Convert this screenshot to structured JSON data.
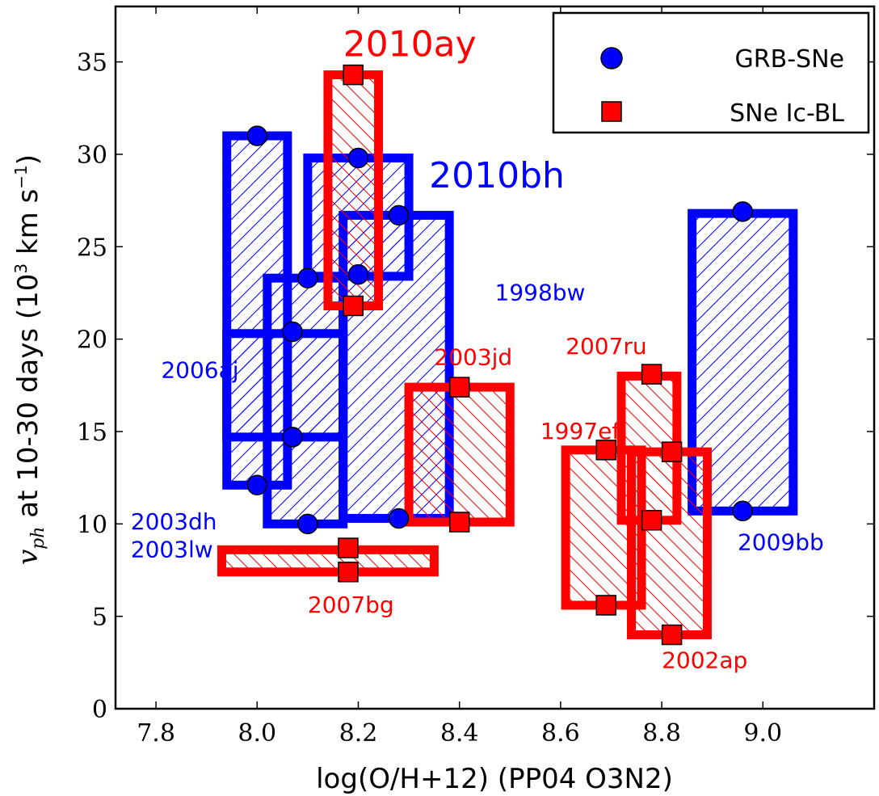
{
  "chart_data": {
    "type": "scatter",
    "xlabel": "log(O/H+12) (PP04 O3N2)",
    "ylabel": {
      "main": "v",
      "sub": "ph",
      "rest": " at 10-30 days (10",
      "sup": "3",
      "unit": " km s",
      "unit_sup": "−1",
      "close": ")"
    },
    "xlim": [
      7.72,
      9.22
    ],
    "ylim": [
      0,
      38
    ],
    "xticks": [
      {
        "value": 7.8,
        "label": "7.8"
      },
      {
        "value": 8.0,
        "label": "8.0"
      },
      {
        "value": 8.2,
        "label": "8.2"
      },
      {
        "value": 8.4,
        "label": "8.4"
      },
      {
        "value": 8.6,
        "label": "8.6"
      },
      {
        "value": 8.8,
        "label": "8.8"
      },
      {
        "value": 9.0,
        "label": "9.0"
      }
    ],
    "yticks": [
      {
        "value": 0,
        "label": "0"
      },
      {
        "value": 5,
        "label": "5"
      },
      {
        "value": 10,
        "label": "10"
      },
      {
        "value": 15,
        "label": "15"
      },
      {
        "value": 20,
        "label": "20"
      },
      {
        "value": 25,
        "label": "25"
      },
      {
        "value": 30,
        "label": "30"
      },
      {
        "value": 35,
        "label": "35"
      }
    ],
    "colors": {
      "grb": "#0000ff",
      "icbl": "#ff0000"
    },
    "legend": {
      "placement": "top-right",
      "entries": [
        {
          "label": "GRB-SNe",
          "marker": "circle",
          "group": "grb"
        },
        {
          "label": "SNe Ic-BL",
          "marker": "square",
          "group": "icbl"
        }
      ]
    },
    "boxes": [
      {
        "name": "2006aj",
        "group": "grb",
        "x0": 7.94,
        "x1": 8.06,
        "y0": 12.1,
        "y1": 31.0
      },
      {
        "name": "2003dh",
        "group": "grb",
        "x0": 7.94,
        "x1": 8.17,
        "y0": 14.7,
        "y1": 20.3
      },
      {
        "name": "2003lw",
        "group": "grb",
        "x0": 8.02,
        "x1": 8.17,
        "y0": 10.0,
        "y1": 23.3
      },
      {
        "name": "2010bh",
        "group": "grb",
        "x0": 8.1,
        "x1": 8.3,
        "y0": 23.4,
        "y1": 29.8
      },
      {
        "name": "1998bw",
        "group": "grb",
        "x0": 8.17,
        "x1": 8.38,
        "y0": 10.3,
        "y1": 26.7
      },
      {
        "name": "2009bb",
        "group": "grb",
        "x0": 8.86,
        "x1": 9.06,
        "y0": 10.7,
        "y1": 26.8
      },
      {
        "name": "2010ay",
        "group": "icbl",
        "x0": 8.14,
        "x1": 8.24,
        "y0": 21.8,
        "y1": 34.3
      },
      {
        "name": "2007bg",
        "group": "icbl",
        "x0": 7.93,
        "x1": 8.35,
        "y0": 7.4,
        "y1": 8.6
      },
      {
        "name": "2003jd",
        "group": "icbl",
        "x0": 8.3,
        "x1": 8.5,
        "y0": 10.1,
        "y1": 17.4
      },
      {
        "name": "1997ef",
        "group": "icbl",
        "x0": 8.61,
        "x1": 8.76,
        "y0": 5.6,
        "y1": 14.0
      },
      {
        "name": "2007ru",
        "group": "icbl",
        "x0": 8.72,
        "x1": 8.83,
        "y0": 10.2,
        "y1": 18.0
      },
      {
        "name": "2002ap",
        "group": "icbl",
        "x0": 8.74,
        "x1": 8.89,
        "y0": 4.0,
        "y1": 13.9
      }
    ],
    "points": [
      {
        "name": "2006aj",
        "group": "grb",
        "x": 8.0,
        "y": 31.0
      },
      {
        "name": "2006aj",
        "group": "grb",
        "x": 8.0,
        "y": 12.1
      },
      {
        "name": "2003dh",
        "group": "grb",
        "x": 8.07,
        "y": 20.4
      },
      {
        "name": "2003dh",
        "group": "grb",
        "x": 8.07,
        "y": 14.7
      },
      {
        "name": "2003lw",
        "group": "grb",
        "x": 8.1,
        "y": 23.3
      },
      {
        "name": "2003lw",
        "group": "grb",
        "x": 8.1,
        "y": 10.0
      },
      {
        "name": "2010bh",
        "group": "grb",
        "x": 8.2,
        "y": 29.8
      },
      {
        "name": "2010bh",
        "group": "grb",
        "x": 8.2,
        "y": 23.5
      },
      {
        "name": "1998bw",
        "group": "grb",
        "x": 8.28,
        "y": 26.7
      },
      {
        "name": "1998bw",
        "group": "grb",
        "x": 8.28,
        "y": 10.3
      },
      {
        "name": "2009bb",
        "group": "grb",
        "x": 8.96,
        "y": 26.9
      },
      {
        "name": "2009bb",
        "group": "grb",
        "x": 8.96,
        "y": 10.7
      },
      {
        "name": "2010ay",
        "group": "icbl",
        "x": 8.19,
        "y": 34.3
      },
      {
        "name": "2010ay",
        "group": "icbl",
        "x": 8.19,
        "y": 21.8
      },
      {
        "name": "2007bg",
        "group": "icbl",
        "x": 8.18,
        "y": 8.7
      },
      {
        "name": "2007bg",
        "group": "icbl",
        "x": 8.18,
        "y": 7.4
      },
      {
        "name": "2003jd",
        "group": "icbl",
        "x": 8.4,
        "y": 17.4
      },
      {
        "name": "2003jd",
        "group": "icbl",
        "x": 8.4,
        "y": 10.1
      },
      {
        "name": "1997ef",
        "group": "icbl",
        "x": 8.69,
        "y": 14.0
      },
      {
        "name": "1997ef",
        "group": "icbl",
        "x": 8.69,
        "y": 5.6
      },
      {
        "name": "2007ru",
        "group": "icbl",
        "x": 8.78,
        "y": 18.1
      },
      {
        "name": "2007ru",
        "group": "icbl",
        "x": 8.78,
        "y": 10.2
      },
      {
        "name": "2002ap",
        "group": "icbl",
        "x": 8.82,
        "y": 13.9
      },
      {
        "name": "2002ap",
        "group": "icbl",
        "x": 8.82,
        "y": 4.0
      }
    ],
    "annotations": [
      {
        "text": "2010ay",
        "group": "icbl",
        "x": 8.17,
        "y": 35.3,
        "size": "large"
      },
      {
        "text": "2010bh",
        "group": "grb",
        "x": 8.34,
        "y": 28.2,
        "size": "large"
      },
      {
        "text": "1998bw",
        "group": "grb",
        "x": 8.47,
        "y": 22.1,
        "size": "small"
      },
      {
        "text": "2006aj",
        "group": "grb",
        "x": 7.81,
        "y": 17.9,
        "size": "small"
      },
      {
        "text": "2003dh",
        "group": "grb",
        "x": 7.75,
        "y": 9.7,
        "size": "small"
      },
      {
        "text": "2003lw",
        "group": "grb",
        "x": 7.75,
        "y": 8.2,
        "size": "small"
      },
      {
        "text": "2007bg",
        "group": "icbl",
        "x": 8.1,
        "y": 5.2,
        "size": "small"
      },
      {
        "text": "2003jd",
        "group": "icbl",
        "x": 8.35,
        "y": 18.6,
        "size": "small"
      },
      {
        "text": "2007ru",
        "group": "icbl",
        "x": 8.61,
        "y": 19.2,
        "size": "small"
      },
      {
        "text": "1997ef",
        "group": "icbl",
        "x": 8.56,
        "y": 14.6,
        "size": "small"
      },
      {
        "text": "2009bb",
        "group": "grb",
        "x": 8.95,
        "y": 8.6,
        "size": "small"
      },
      {
        "text": "2002ap",
        "group": "icbl",
        "x": 8.8,
        "y": 2.2,
        "size": "small"
      }
    ]
  }
}
